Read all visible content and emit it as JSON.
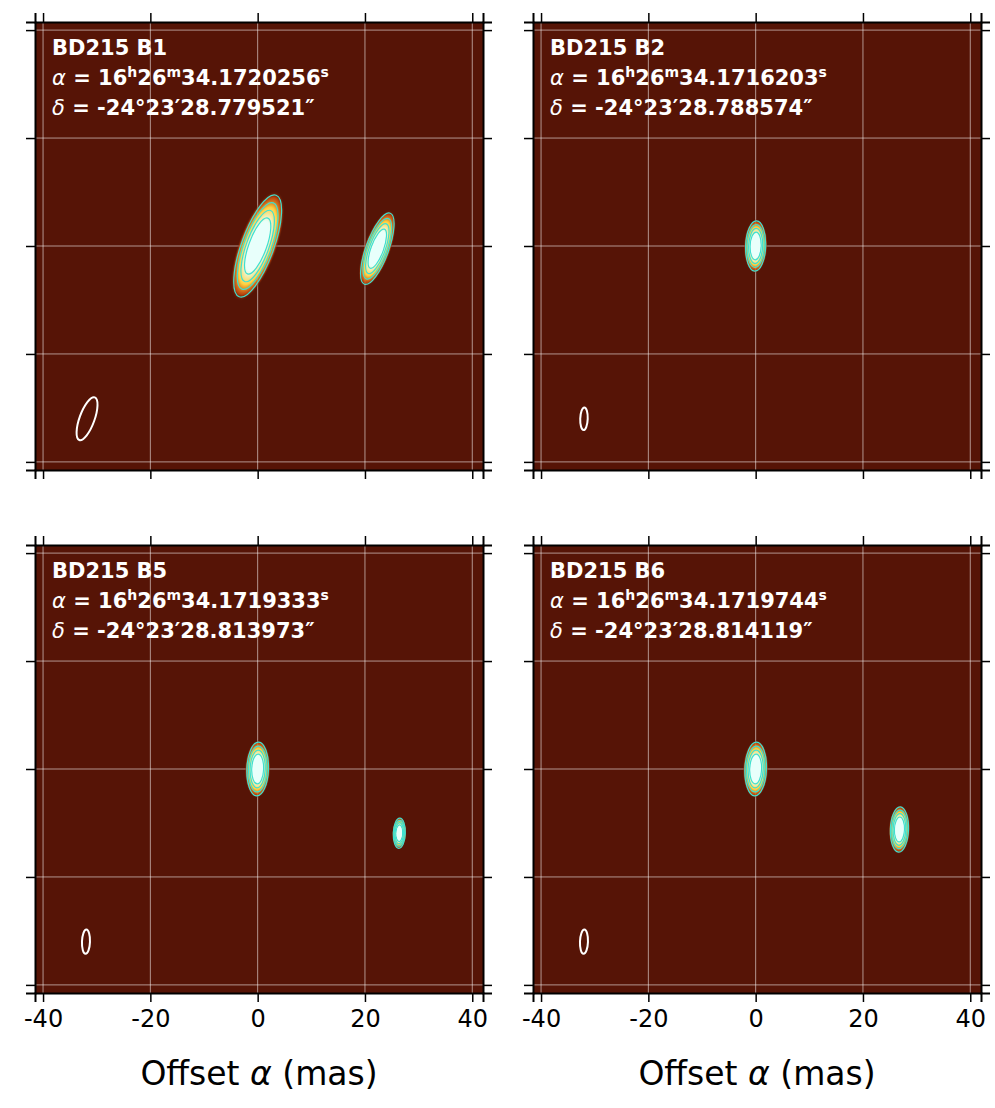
{
  "chart_data": [
    {
      "type": "scatter",
      "title": "BD215 B1",
      "annotations": [
        "α = 16h26m34.1720256s",
        "δ = -24°23′28.779521″"
      ],
      "x": [
        0,
        22.3
      ],
      "values": [
        0,
        -0.5
      ],
      "size": [
        20,
        14
      ],
      "beam": {
        "x": -31.8,
        "y": -32,
        "size": 8.4
      },
      "color": "#40e0d0",
      "xlim": [
        -41.5,
        42
      ],
      "ylim": [
        -41.5,
        41.5
      ],
      "xticks": [
        -40,
        -20,
        0,
        20,
        40
      ],
      "yticks": [
        -40,
        -20,
        0,
        20,
        40
      ],
      "grid": true,
      "tick_labels": false
    },
    {
      "type": "scatter",
      "title": "BD215 B2",
      "annotations": [
        "α = 16h26m34.1716203s",
        "δ = -24°23′28.788574″"
      ],
      "x": [
        0
      ],
      "values": [
        0
      ],
      "size": [
        9.3
      ],
      "beam": {
        "x": -32,
        "y": -32,
        "size": 4.2
      },
      "color": "#40e0d0",
      "xlim": [
        -41.5,
        42
      ],
      "ylim": [
        -41.5,
        41.5
      ],
      "xticks": [
        -40,
        -20,
        0,
        20,
        40
      ],
      "yticks": [
        -40,
        -20,
        0,
        20,
        40
      ],
      "grid": true,
      "tick_labels": false
    },
    {
      "type": "scatter",
      "title": "BD215 B5",
      "annotations": [
        "α = 16h26m34.1719333s",
        "δ = -24°23′28.813973″"
      ],
      "x": [
        0,
        26.4
      ],
      "values": [
        0,
        -11.9
      ],
      "size": [
        10,
        5.6
      ],
      "beam": {
        "x": -32,
        "y": -32,
        "size": 4.5
      },
      "color": "#40e0d0",
      "xlabel": "Offset α (mas)",
      "xlim": [
        -41.5,
        42
      ],
      "ylim": [
        -41.5,
        41.5
      ],
      "xticks": [
        -40,
        -20,
        0,
        20,
        40
      ],
      "yticks": [
        -40,
        -20,
        0,
        20,
        40
      ],
      "grid": true,
      "tick_labels": "x"
    },
    {
      "type": "scatter",
      "title": "BD215 B6",
      "annotations": [
        "α = 16h26m34.1719744s",
        "δ = -24°23′28.814119″"
      ],
      "x": [
        0,
        26.8
      ],
      "values": [
        0,
        -11.2
      ],
      "size": [
        10,
        8.4
      ],
      "beam": {
        "x": -32,
        "y": -32,
        "size": 4.5
      },
      "color": "#40e0d0",
      "xlabel": "Offset α (mas)",
      "xlim": [
        -41.5,
        42
      ],
      "ylim": [
        -41.5,
        41.5
      ],
      "xticks": [
        -40,
        -20,
        0,
        20,
        40
      ],
      "yticks": [
        -40,
        -20,
        0,
        20,
        40
      ],
      "grid": true,
      "tick_labels": "x"
    }
  ]
}
